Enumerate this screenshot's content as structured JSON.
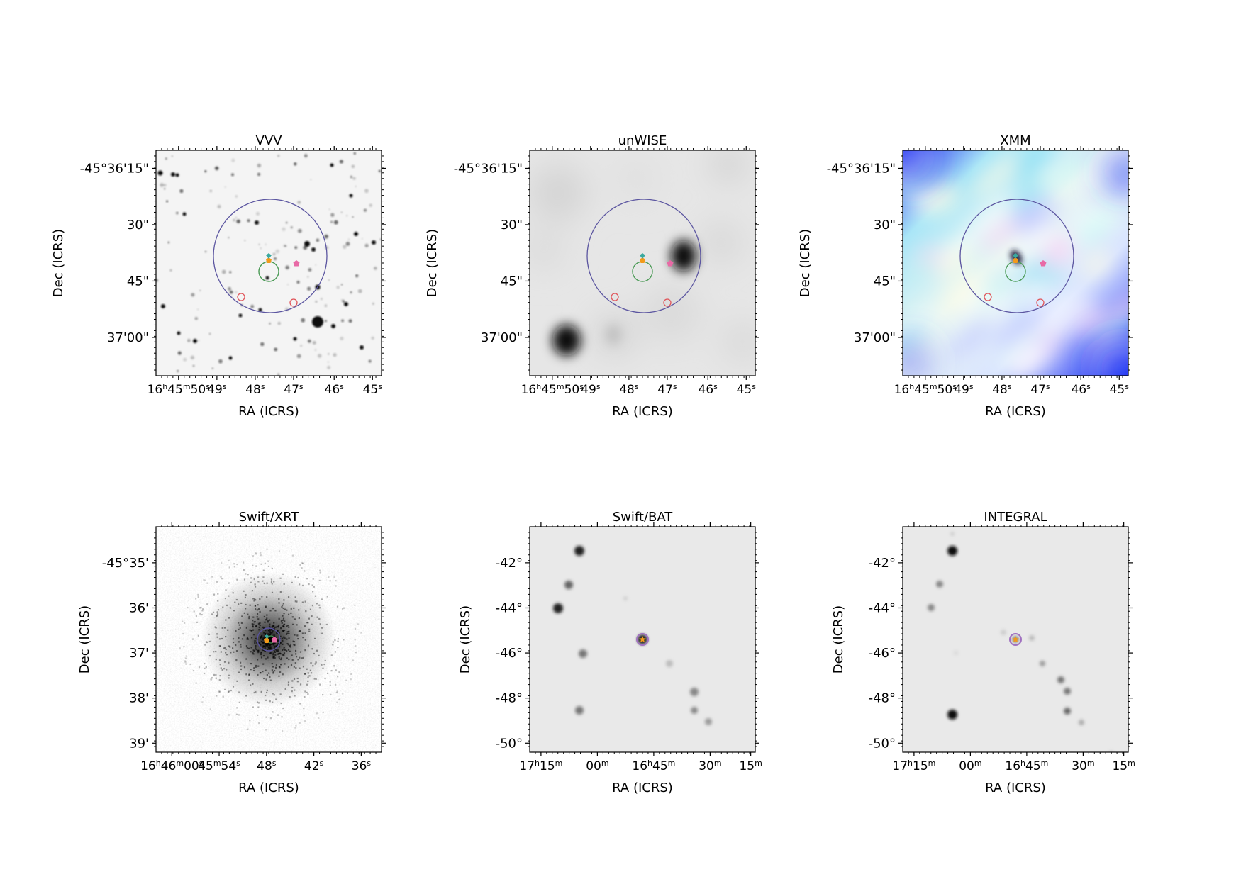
{
  "panels": [
    {
      "title": "VVV",
      "kind": "small",
      "xticks": [
        {
          "t": "16<sup>h</sup>45<sup>m</sup>50<sup>s</sup>"
        },
        {
          "t": "49<sup>s</sup>"
        },
        {
          "t": "48<sup>s</sup>"
        },
        {
          "t": "47<sup>s</sup>"
        },
        {
          "t": "46<sup>s</sup>"
        },
        {
          "t": "45<sup>s</sup>"
        }
      ],
      "yticks": [
        "-45°36'15\"",
        "30\"",
        "45\"",
        "37'00\""
      ],
      "xlabel": "RA (ICRS)",
      "ylabel": "Dec (ICRS)",
      "background": "stars"
    },
    {
      "title": "unWISE",
      "kind": "small",
      "xticks": [
        {
          "t": "16<sup>h</sup>45<sup>m</sup>50<sup>s</sup>"
        },
        {
          "t": "49<sup>s</sup>"
        },
        {
          "t": "48<sup>s</sup>"
        },
        {
          "t": "47<sup>s</sup>"
        },
        {
          "t": "46<sup>s</sup>"
        },
        {
          "t": "45<sup>s</sup>"
        }
      ],
      "yticks": [
        "-45°36'15\"",
        "30\"",
        "45\"",
        "37'00\""
      ],
      "xlabel": "RA (ICRS)",
      "ylabel": "Dec (ICRS)",
      "background": "blurry"
    },
    {
      "title": "XMM",
      "kind": "small",
      "xticks": [
        {
          "t": "16<sup>h</sup>45<sup>m</sup>50<sup>s</sup>"
        },
        {
          "t": "49<sup>s</sup>"
        },
        {
          "t": "48<sup>s</sup>"
        },
        {
          "t": "47<sup>s</sup>"
        },
        {
          "t": "46<sup>s</sup>"
        },
        {
          "t": "45<sup>s</sup>"
        }
      ],
      "yticks": [
        "-45°36'15\"",
        "30\"",
        "45\"",
        "37'00\""
      ],
      "xlabel": "RA (ICRS)",
      "ylabel": "Dec (ICRS)",
      "background": "xmm"
    },
    {
      "title": "Swift/XRT",
      "kind": "xrt",
      "xticks": [
        {
          "t": "16<sup>h</sup>46<sup>m</sup>00<sup>s</sup>"
        },
        {
          "t": "45<sup>m</sup>54<sup>s</sup>"
        },
        {
          "t": "48<sup>s</sup>"
        },
        {
          "t": "42<sup>s</sup>"
        },
        {
          "t": "36<sup>s</sup>"
        }
      ],
      "yticks": [
        "-45°35'",
        "36'",
        "37'",
        "38'",
        "39'"
      ],
      "xlabel": "RA (ICRS)",
      "ylabel": "Dec (ICRS)",
      "background": "xrt"
    },
    {
      "title": "Swift/BAT",
      "kind": "wide",
      "xticks": [
        {
          "t": "17<sup>h</sup>15<sup>m</sup>"
        },
        {
          "t": "00<sup>m</sup>"
        },
        {
          "t": "16<sup>h</sup>45<sup>m</sup>"
        },
        {
          "t": "30<sup>m</sup>"
        },
        {
          "t": "15<sup>m</sup>"
        }
      ],
      "yticks": [
        "-42°",
        "-44°",
        "-46°",
        "-48°",
        "-50°"
      ],
      "xlabel": "RA (ICRS)",
      "ylabel": "Dec (ICRS)",
      "background": "bat"
    },
    {
      "title": "INTEGRAL",
      "kind": "wide",
      "xticks": [
        {
          "t": "17<sup>h</sup>15<sup>m</sup>"
        },
        {
          "t": "00<sup>m</sup>"
        },
        {
          "t": "16<sup>h</sup>45<sup>m</sup>"
        },
        {
          "t": "30<sup>m</sup>"
        },
        {
          "t": "15<sup>m</sup>"
        }
      ],
      "yticks": [
        "-42°",
        "-44°",
        "-46°",
        "-48°",
        "-50°"
      ],
      "xlabel": "RA (ICRS)",
      "ylabel": "Dec (ICRS)",
      "background": "integral"
    }
  ],
  "colors": {
    "error_circle": "#5b55a0",
    "green_circle": "#4a9a55",
    "red_circles": "#e0555a",
    "orange_marker": "#f29a1a",
    "pink_marker": "#e86aa6",
    "teal_marker": "#3aa99f"
  }
}
